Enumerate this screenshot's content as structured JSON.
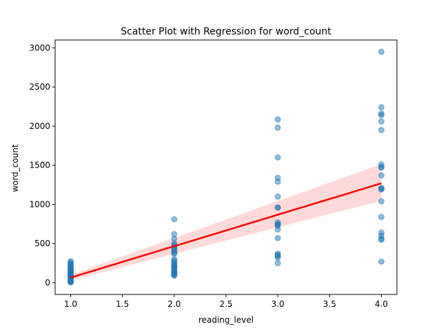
{
  "chart_data": {
    "type": "scatter",
    "title": "Scatter Plot with Regression for word_count",
    "xlabel": "reading_level",
    "ylabel": "word_count",
    "xlim": [
      0.85,
      4.15
    ],
    "ylim": [
      -150,
      3100
    ],
    "xticks": [
      1.0,
      1.5,
      2.0,
      2.5,
      3.0,
      3.5,
      4.0
    ],
    "xtick_labels": [
      "1.0",
      "1.5",
      "2.0",
      "2.5",
      "3.0",
      "3.5",
      "4.0"
    ],
    "yticks": [
      0,
      500,
      1000,
      1500,
      2000,
      2500,
      3000
    ],
    "ytick_labels": [
      "0",
      "500",
      "1000",
      "1500",
      "2000",
      "2500",
      "3000"
    ],
    "grid": false,
    "legend": "none",
    "colors": {
      "points": "#1f77b4",
      "regression_line": "#ff0000",
      "confidence_band": "#ff0000"
    },
    "series": [
      {
        "x": [
          1,
          1,
          1,
          1,
          1,
          1,
          1,
          1,
          1,
          1,
          1,
          1,
          1,
          1,
          1,
          1,
          1,
          1,
          1,
          1,
          1,
          1,
          1,
          1,
          1,
          1,
          1,
          2,
          2,
          2,
          2,
          2,
          2,
          2,
          2,
          2,
          2,
          2,
          2,
          2,
          2,
          2,
          2,
          2,
          2,
          2,
          2,
          2,
          2,
          2,
          2,
          2,
          2,
          2,
          3,
          3,
          3,
          3,
          3,
          3,
          3,
          3,
          3,
          3,
          3,
          3,
          3,
          3,
          3,
          3,
          3,
          3,
          3,
          4,
          4,
          4,
          4,
          4,
          4,
          4,
          4,
          4,
          4,
          4,
          4,
          4,
          4,
          4,
          4,
          4,
          4,
          4,
          4
        ],
        "y": [
          275,
          255,
          240,
          225,
          210,
          195,
          180,
          170,
          160,
          150,
          140,
          130,
          120,
          110,
          100,
          95,
          90,
          80,
          70,
          60,
          50,
          40,
          30,
          20,
          15,
          10,
          5,
          810,
          620,
          560,
          500,
          480,
          460,
          440,
          420,
          400,
          380,
          370,
          300,
          280,
          260,
          240,
          220,
          210,
          200,
          190,
          170,
          150,
          140,
          130,
          120,
          110,
          100,
          90,
          2085,
          1980,
          1600,
          1340,
          1290,
          1100,
          960,
          770,
          740,
          680,
          570,
          370,
          355,
          340,
          320,
          250,
          960,
          750,
          730,
          2950,
          2240,
          2160,
          2140,
          2060,
          1950,
          1510,
          1470,
          1370,
          1210,
          1200,
          1190,
          1040,
          840,
          640,
          600,
          560,
          550,
          270,
          1480
        ]
      }
    ],
    "regression": {
      "x": [
        1,
        4
      ],
      "y": [
        65,
        1270
      ],
      "ci_lower": [
        30,
        1045
      ],
      "ci_upper": [
        100,
        1515
      ]
    }
  }
}
